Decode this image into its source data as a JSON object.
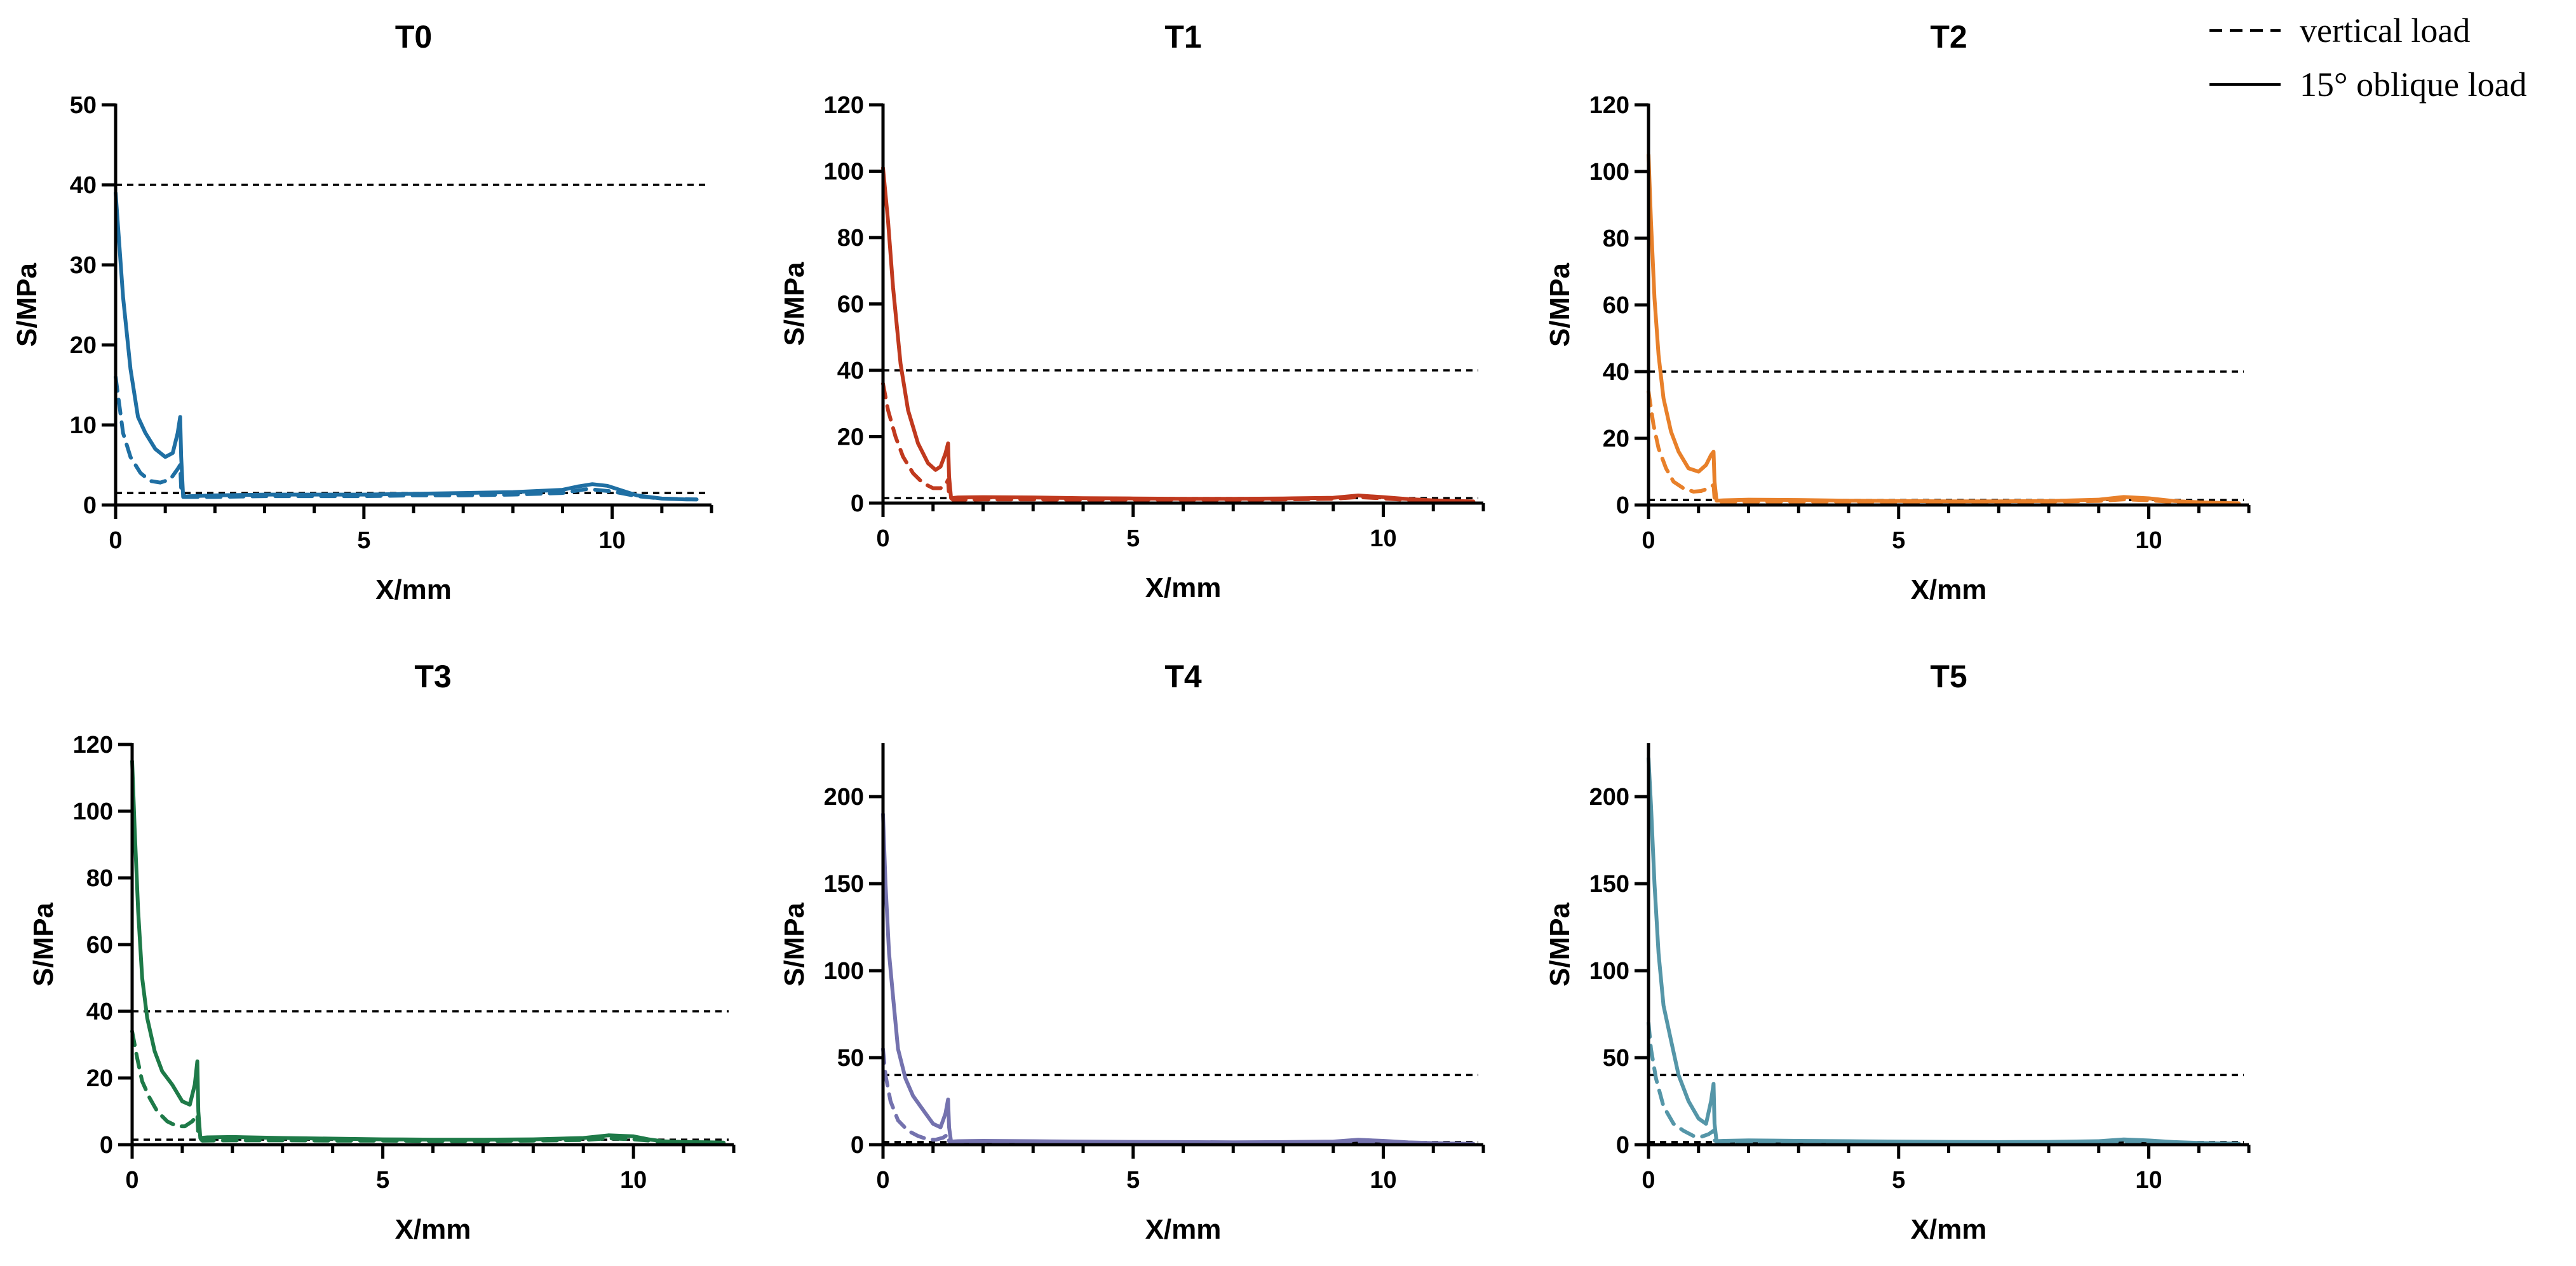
{
  "legend": {
    "entries": [
      {
        "label": "vertical load",
        "style": "dashed"
      },
      {
        "label": "15° oblique load",
        "style": "solid"
      }
    ]
  },
  "chart_data": [
    {
      "type": "line",
      "title": "T0",
      "xlabel": "X/mm",
      "ylabel": "S/MPa",
      "xlim": [
        0,
        12
      ],
      "ylim": [
        0,
        50
      ],
      "xticks": [
        0,
        5,
        10
      ],
      "yticks": [
        0,
        10,
        20,
        30,
        40,
        50
      ],
      "color": "#1f6fa3",
      "reference_lines": [
        40,
        1.5
      ],
      "series": [
        {
          "name": "15° oblique load",
          "style": "solid",
          "x": [
            0,
            0.15,
            0.3,
            0.45,
            0.6,
            0.8,
            1.0,
            1.15,
            1.25,
            1.3,
            1.32,
            1.36,
            1.5,
            2,
            3,
            4,
            5,
            6,
            7,
            8,
            9,
            9.3,
            9.6,
            9.9,
            10.2,
            10.5,
            11,
            11.5,
            11.7
          ],
          "y": [
            39,
            26,
            17,
            11,
            9,
            7,
            6,
            6.5,
            9,
            11,
            6,
            1.0,
            1.1,
            1.2,
            1.3,
            1.3,
            1.3,
            1.4,
            1.5,
            1.6,
            1.9,
            2.3,
            2.6,
            2.4,
            1.8,
            1.2,
            0.8,
            0.7,
            0.7
          ]
        },
        {
          "name": "vertical load",
          "style": "dashed",
          "x": [
            0,
            0.15,
            0.3,
            0.5,
            0.7,
            0.9,
            1.1,
            1.25,
            1.3,
            1.32,
            1.4,
            2,
            3,
            4,
            5,
            6,
            7,
            8,
            9,
            9.5,
            10,
            10.5,
            11,
            11.7
          ],
          "y": [
            16,
            9,
            6,
            4,
            3,
            2.8,
            3.2,
            4.5,
            5,
            2,
            1.0,
            1.0,
            1.1,
            1.1,
            1.1,
            1.2,
            1.2,
            1.3,
            1.5,
            2.0,
            1.7,
            1.1,
            0.8,
            0.7
          ]
        }
      ]
    },
    {
      "type": "line",
      "title": "T1",
      "xlabel": "X/mm",
      "ylabel": "S/MPa",
      "xlim": [
        0,
        12
      ],
      "ylim": [
        0,
        120
      ],
      "xticks": [
        0,
        5,
        10
      ],
      "yticks": [
        0,
        20,
        40,
        60,
        80,
        100,
        120
      ],
      "color": "#c0391e",
      "reference_lines": [
        40,
        1.5
      ],
      "series": [
        {
          "name": "15° oblique load",
          "style": "solid",
          "x": [
            0,
            0.1,
            0.2,
            0.35,
            0.5,
            0.7,
            0.9,
            1.05,
            1.15,
            1.25,
            1.3,
            1.32,
            1.36,
            1.5,
            2,
            3,
            4,
            5,
            6,
            7,
            8,
            9,
            9.5,
            10,
            10.5,
            11,
            11.5,
            11.8
          ],
          "y": [
            101,
            85,
            65,
            42,
            28,
            18,
            12,
            10,
            11,
            15,
            18,
            8,
            1.5,
            1.7,
            1.8,
            1.7,
            1.5,
            1.4,
            1.3,
            1.3,
            1.4,
            1.6,
            2.3,
            1.8,
            1.2,
            0.8,
            0.6,
            0.5
          ]
        },
        {
          "name": "vertical load",
          "style": "dashed",
          "x": [
            0,
            0.1,
            0.25,
            0.4,
            0.6,
            0.8,
            1.0,
            1.15,
            1.25,
            1.3,
            1.32,
            1.4,
            2,
            3,
            4,
            5,
            6,
            7,
            8,
            9,
            9.5,
            10,
            10.5,
            11,
            11.8
          ],
          "y": [
            36,
            28,
            20,
            14,
            9,
            6,
            4.5,
            4.5,
            5.5,
            7,
            2,
            1.0,
            1.1,
            1.1,
            1.0,
            1.0,
            1.0,
            1.0,
            1.1,
            1.3,
            1.8,
            1.4,
            0.9,
            0.6,
            0.5
          ]
        }
      ]
    },
    {
      "type": "line",
      "title": "T2",
      "xlabel": "X/mm",
      "ylabel": "S/MPa",
      "xlim": [
        0,
        12
      ],
      "ylim": [
        0,
        120
      ],
      "xticks": [
        0,
        5,
        10
      ],
      "yticks": [
        0,
        20,
        40,
        60,
        80,
        100,
        120
      ],
      "color": "#e8802a",
      "reference_lines": [
        40,
        1.5
      ],
      "series": [
        {
          "name": "15° oblique load",
          "style": "solid",
          "x": [
            0,
            0.05,
            0.12,
            0.2,
            0.3,
            0.45,
            0.6,
            0.8,
            1.0,
            1.15,
            1.25,
            1.3,
            1.32,
            1.36,
            1.5,
            2,
            3,
            4,
            5,
            6,
            7,
            8,
            9,
            9.5,
            10,
            10.5,
            11,
            11.5,
            11.8
          ],
          "y": [
            105,
            85,
            62,
            45,
            32,
            22,
            16,
            11,
            10,
            12,
            15,
            16,
            7,
            1.3,
            1.4,
            1.6,
            1.5,
            1.3,
            1.2,
            1.1,
            1.1,
            1.2,
            1.6,
            2.4,
            2.0,
            1.2,
            0.8,
            0.6,
            0.5
          ]
        },
        {
          "name": "vertical load",
          "style": "dashed",
          "x": [
            0,
            0.1,
            0.2,
            0.35,
            0.5,
            0.7,
            0.9,
            1.05,
            1.2,
            1.3,
            1.32,
            1.4,
            2,
            3,
            4,
            5,
            6,
            7,
            8,
            9,
            9.5,
            10,
            10.5,
            11,
            11.8
          ],
          "y": [
            34,
            24,
            17,
            11,
            7,
            5,
            4,
            4.2,
            5,
            6,
            2,
            0.9,
            1.0,
            1.0,
            1.0,
            0.9,
            0.9,
            0.9,
            1.0,
            1.2,
            1.7,
            1.4,
            0.9,
            0.6,
            0.5
          ]
        }
      ]
    },
    {
      "type": "line",
      "title": "T3",
      "xlabel": "X/mm",
      "ylabel": "S/MPa",
      "xlim": [
        0,
        12
      ],
      "ylim": [
        0,
        120
      ],
      "xticks": [
        0,
        5,
        10
      ],
      "yticks": [
        0,
        20,
        40,
        60,
        80,
        100,
        120
      ],
      "color": "#1e7a48",
      "reference_lines": [
        40,
        1.5
      ],
      "series": [
        {
          "name": "15° oblique load",
          "style": "solid",
          "x": [
            0,
            0.05,
            0.12,
            0.2,
            0.3,
            0.45,
            0.6,
            0.8,
            1.0,
            1.15,
            1.25,
            1.3,
            1.32,
            1.36,
            1.5,
            2,
            3,
            4,
            5,
            6,
            7,
            8,
            9,
            9.5,
            10,
            10.3,
            10.6,
            11,
            11.5,
            11.8
          ],
          "y": [
            115,
            95,
            70,
            50,
            38,
            28,
            22,
            18,
            13,
            12,
            18,
            25,
            10,
            2.0,
            2.2,
            2.3,
            2.0,
            1.8,
            1.6,
            1.5,
            1.5,
            1.6,
            2.0,
            2.8,
            2.5,
            1.6,
            1.0,
            0.8,
            0.7,
            0.6
          ]
        },
        {
          "name": "vertical load",
          "style": "dashed",
          "x": [
            0,
            0.1,
            0.2,
            0.35,
            0.5,
            0.7,
            0.9,
            1.05,
            1.2,
            1.3,
            1.32,
            1.4,
            2,
            3,
            4,
            5,
            6,
            7,
            8,
            9,
            9.5,
            10,
            10.5,
            11,
            11.8
          ],
          "y": [
            34,
            26,
            19,
            14,
            10,
            7,
            5.5,
            5.5,
            7,
            9,
            2.5,
            1.2,
            1.3,
            1.3,
            1.2,
            1.2,
            1.1,
            1.1,
            1.2,
            1.4,
            1.9,
            1.6,
            1.0,
            0.7,
            0.6
          ]
        }
      ]
    },
    {
      "type": "line",
      "title": "T4",
      "xlabel": "X/mm",
      "ylabel": "S/MPa",
      "xlim": [
        0,
        12
      ],
      "ylim": [
        0,
        230
      ],
      "xticks": [
        0,
        5,
        10
      ],
      "yticks": [
        0,
        50,
        100,
        150,
        200
      ],
      "color": "#7472ae",
      "reference_lines": [
        40,
        1.5
      ],
      "series": [
        {
          "name": "15° oblique load",
          "style": "solid",
          "x": [
            0,
            0.05,
            0.12,
            0.2,
            0.3,
            0.45,
            0.6,
            0.8,
            1.0,
            1.15,
            1.25,
            1.3,
            1.32,
            1.36,
            1.5,
            2,
            3,
            4,
            5,
            6,
            7,
            8,
            9,
            9.5,
            10,
            10.5,
            11,
            11.5,
            11.8
          ],
          "y": [
            190,
            150,
            110,
            85,
            55,
            38,
            28,
            20,
            12,
            10,
            18,
            26,
            10,
            1.8,
            2.0,
            2.2,
            2.0,
            1.8,
            1.6,
            1.5,
            1.4,
            1.5,
            1.8,
            2.8,
            2.2,
            1.3,
            0.9,
            0.6,
            0.5
          ]
        },
        {
          "name": "vertical load",
          "style": "dashed",
          "x": [
            0,
            0.05,
            0.15,
            0.3,
            0.5,
            0.7,
            0.9,
            1.05,
            1.2,
            1.3,
            1.32,
            1.4,
            2,
            3,
            4,
            5,
            6,
            7,
            8,
            9,
            9.5,
            10,
            10.5,
            11,
            11.8
          ],
          "y": [
            55,
            40,
            25,
            14,
            8,
            5,
            3,
            2.8,
            4,
            6,
            2,
            1.0,
            1.1,
            1.1,
            1.0,
            1.0,
            1.0,
            1.0,
            1.1,
            1.3,
            1.9,
            1.5,
            0.9,
            0.6,
            0.5
          ]
        }
      ]
    },
    {
      "type": "line",
      "title": "T5",
      "xlabel": "X/mm",
      "ylabel": "S/MPa",
      "xlim": [
        0,
        12
      ],
      "ylim": [
        0,
        230
      ],
      "xticks": [
        0,
        5,
        10
      ],
      "yticks": [
        0,
        50,
        100,
        150,
        200
      ],
      "color": "#5596a8",
      "reference_lines": [
        40,
        1.5
      ],
      "series": [
        {
          "name": "15° oblique load",
          "style": "solid",
          "x": [
            0,
            0.05,
            0.12,
            0.2,
            0.3,
            0.45,
            0.6,
            0.8,
            1.0,
            1.15,
            1.25,
            1.3,
            1.32,
            1.36,
            1.5,
            2,
            3,
            4,
            5,
            6,
            7,
            8,
            9,
            9.5,
            10,
            10.5,
            11,
            11.5,
            11.8
          ],
          "y": [
            222,
            195,
            150,
            110,
            80,
            60,
            40,
            25,
            15,
            12,
            25,
            35,
            12,
            2.0,
            2.2,
            2.5,
            2.2,
            2.0,
            1.8,
            1.6,
            1.5,
            1.6,
            2.0,
            3.0,
            2.4,
            1.5,
            1.0,
            0.7,
            0.6
          ]
        },
        {
          "name": "vertical load",
          "style": "dashed",
          "x": [
            0,
            0.05,
            0.15,
            0.3,
            0.5,
            0.7,
            0.9,
            1.05,
            1.2,
            1.3,
            1.32,
            1.4,
            2,
            3,
            4,
            5,
            6,
            7,
            8,
            9,
            9.5,
            10,
            10.5,
            11,
            11.8
          ],
          "y": [
            70,
            55,
            38,
            22,
            12,
            8,
            5,
            4.5,
            6,
            8,
            2.5,
            1.2,
            1.3,
            1.3,
            1.2,
            1.2,
            1.1,
            1.1,
            1.2,
            1.4,
            2.0,
            1.6,
            1.0,
            0.7,
            0.6
          ]
        }
      ]
    }
  ]
}
